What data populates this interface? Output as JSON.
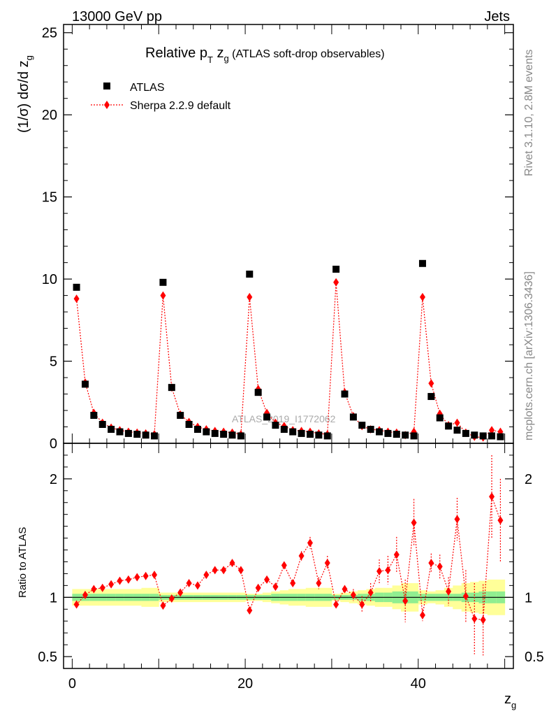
{
  "header": {
    "left": "13000 GeV pp",
    "right": "Jets",
    "title_main": "Relative p",
    "title_sub_T": "T",
    "title_z": " z",
    "title_sub_g": "g",
    "title_rest": " (ATLAS soft-drop observables)"
  },
  "side_labels": {
    "rivet": "Rivet 3.1.10,  2.8M events",
    "mcplots": "mcplots.cern.ch [arXiv:1306.3436]"
  },
  "watermark": "ATLAS_2019_I1772062",
  "axes": {
    "ylabel_main": "(1/σ) dσ/d z",
    "ylabel_main_sub": "g",
    "ylabel_ratio": "Ratio to ATLAS",
    "xlabel": "z",
    "xlabel_sub": "g"
  },
  "chart_data": [
    {
      "type": "scatter",
      "panel": "main",
      "xlim": [
        -1,
        51
      ],
      "ylim": [
        0,
        25.5
      ],
      "yticks": [
        0,
        5,
        10,
        15,
        20,
        25
      ],
      "ytick_labels": [
        "0",
        "5",
        "10",
        "15",
        "20",
        "25"
      ],
      "x": [
        0.5,
        1.5,
        2.5,
        3.5,
        4.5,
        5.5,
        6.5,
        7.5,
        8.5,
        9.5,
        10.5,
        11.5,
        12.5,
        13.5,
        14.5,
        15.5,
        16.5,
        17.5,
        18.5,
        19.5,
        20.5,
        21.5,
        22.5,
        23.5,
        24.5,
        25.5,
        26.5,
        27.5,
        28.5,
        29.5,
        30.5,
        31.5,
        32.5,
        33.5,
        34.5,
        35.5,
        36.5,
        37.5,
        38.5,
        39.5,
        40.5,
        41.5,
        42.5,
        43.5,
        44.5,
        45.5,
        46.5,
        47.5,
        48.5,
        49.5
      ],
      "legend": [
        {
          "label": "ATLAS",
          "marker": "square",
          "color": "#000000"
        },
        {
          "label": "Sherpa 2.2.9 default",
          "marker": "diamond",
          "color": "#ff0000"
        }
      ],
      "series": [
        {
          "name": "ATLAS",
          "color": "#000000",
          "values": [
            9.5,
            3.6,
            1.7,
            1.15,
            0.85,
            0.7,
            0.6,
            0.55,
            0.5,
            0.45,
            9.8,
            3.4,
            1.7,
            1.15,
            0.85,
            0.7,
            0.6,
            0.55,
            0.5,
            0.45,
            10.3,
            3.1,
            1.6,
            1.1,
            0.85,
            0.7,
            0.6,
            0.55,
            0.5,
            0.45,
            10.6,
            3.0,
            1.6,
            1.1,
            0.85,
            0.7,
            0.6,
            0.55,
            0.5,
            0.45,
            10.95,
            2.85,
            1.55,
            1.05,
            0.8,
            0.6,
            0.5,
            0.45,
            0.45,
            0.4
          ]
        },
        {
          "name": "Sherpa 2.2.9 default",
          "color": "#ff0000",
          "values": [
            8.8,
            3.7,
            1.85,
            1.25,
            0.95,
            0.8,
            0.7,
            0.65,
            0.6,
            0.55,
            9.0,
            3.4,
            1.75,
            1.3,
            1.0,
            0.85,
            0.75,
            0.7,
            0.65,
            0.55,
            8.9,
            3.3,
            1.85,
            1.25,
            1.05,
            0.8,
            0.75,
            0.7,
            0.6,
            0.55,
            9.8,
            3.1,
            1.65,
            1.05,
            0.85,
            0.8,
            0.7,
            0.65,
            0.5,
            0.7,
            8.9,
            3.65,
            1.8,
            1.1,
            1.25,
            0.65,
            0.4,
            0.35,
            0.8,
            0.7
          ]
        }
      ]
    },
    {
      "type": "scatter",
      "panel": "ratio",
      "xlim": [
        -1,
        51
      ],
      "xticks": [
        0,
        20,
        40
      ],
      "xtick_labels": [
        "0",
        "20",
        "40"
      ],
      "ylim": [
        0.4,
        2.3
      ],
      "yticks": [
        0.5,
        1,
        2
      ],
      "ytick_labels": [
        "0.5",
        "1",
        "2"
      ],
      "x": [
        0.5,
        1.5,
        2.5,
        3.5,
        4.5,
        5.5,
        6.5,
        7.5,
        8.5,
        9.5,
        10.5,
        11.5,
        12.5,
        13.5,
        14.5,
        15.5,
        16.5,
        17.5,
        18.5,
        19.5,
        20.5,
        21.5,
        22.5,
        23.5,
        24.5,
        25.5,
        26.5,
        27.5,
        28.5,
        29.5,
        30.5,
        31.5,
        32.5,
        33.5,
        34.5,
        35.5,
        36.5,
        37.5,
        38.5,
        39.5,
        40.5,
        41.5,
        42.5,
        43.5,
        44.5,
        45.5,
        46.5,
        47.5,
        48.5,
        49.5
      ],
      "series": [
        {
          "name": "Sherpa 2.2.9 default",
          "color": "#ff0000",
          "values": [
            0.94,
            1.02,
            1.07,
            1.08,
            1.11,
            1.14,
            1.15,
            1.17,
            1.18,
            1.19,
            0.93,
            0.99,
            1.04,
            1.12,
            1.1,
            1.19,
            1.23,
            1.23,
            1.29,
            1.23,
            0.89,
            1.08,
            1.15,
            1.09,
            1.27,
            1.12,
            1.35,
            1.46,
            1.12,
            1.29,
            0.94,
            1.07,
            1.02,
            0.94,
            1.04,
            1.22,
            1.23,
            1.36,
            0.97,
            1.63,
            0.85,
            1.29,
            1.26,
            1.05,
            1.66,
            1.01,
            0.82,
            0.81,
            1.85,
            1.65
          ],
          "errors": [
            0.01,
            0.01,
            0.01,
            0.01,
            0.01,
            0.01,
            0.01,
            0.01,
            0.01,
            0.01,
            0.01,
            0.01,
            0.01,
            0.01,
            0.01,
            0.01,
            0.01,
            0.01,
            0.02,
            0.02,
            0.01,
            0.01,
            0.02,
            0.02,
            0.03,
            0.03,
            0.04,
            0.05,
            0.05,
            0.06,
            0.02,
            0.03,
            0.05,
            0.07,
            0.08,
            0.1,
            0.12,
            0.15,
            0.18,
            0.2,
            0.05,
            0.08,
            0.1,
            0.12,
            0.18,
            0.22,
            0.3,
            0.3,
            0.35,
            0.35
          ]
        }
      ],
      "bands": {
        "green_color": "#90ee90",
        "yellow_color": "#ffff99",
        "green_halfwidth": [
          0.03,
          0.03,
          0.03,
          0.03,
          0.03,
          0.03,
          0.03,
          0.03,
          0.03,
          0.03,
          0.02,
          0.02,
          0.02,
          0.02,
          0.02,
          0.02,
          0.02,
          0.02,
          0.02,
          0.02,
          0.02,
          0.02,
          0.02,
          0.03,
          0.03,
          0.03,
          0.03,
          0.03,
          0.03,
          0.03,
          0.02,
          0.02,
          0.02,
          0.03,
          0.03,
          0.04,
          0.04,
          0.05,
          0.05,
          0.05,
          0.03,
          0.03,
          0.03,
          0.03,
          0.03,
          0.04,
          0.04,
          0.05,
          0.05,
          0.05
        ],
        "yellow_halfwidth": [
          0.07,
          0.07,
          0.07,
          0.07,
          0.07,
          0.07,
          0.07,
          0.07,
          0.08,
          0.08,
          0.04,
          0.04,
          0.04,
          0.04,
          0.04,
          0.04,
          0.04,
          0.04,
          0.04,
          0.04,
          0.03,
          0.03,
          0.04,
          0.05,
          0.06,
          0.07,
          0.07,
          0.08,
          0.08,
          0.08,
          0.03,
          0.04,
          0.05,
          0.06,
          0.07,
          0.08,
          0.08,
          0.1,
          0.12,
          0.12,
          0.06,
          0.05,
          0.06,
          0.08,
          0.1,
          0.12,
          0.13,
          0.14,
          0.15,
          0.15
        ]
      }
    }
  ]
}
